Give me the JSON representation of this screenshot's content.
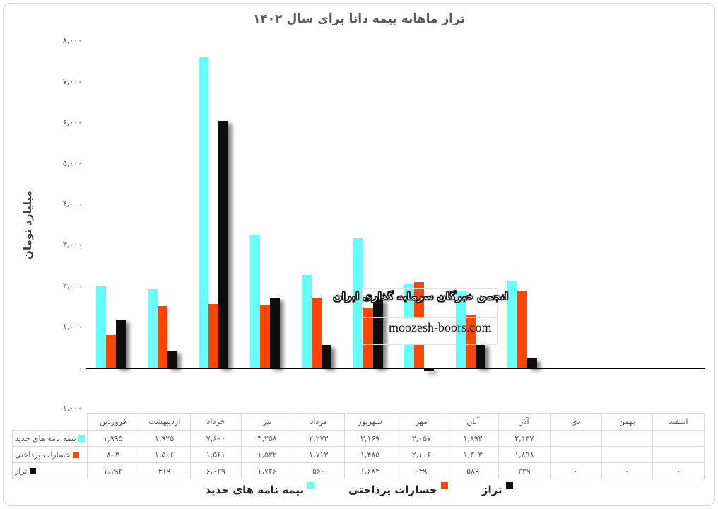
{
  "title": "تراز ماهانه بیمه دانا برای سال ۱۴۰۲",
  "y_axis": {
    "label": "میلیارد تومان",
    "ticks": [
      "۸,۰۰۰",
      "۷,۰۰۰",
      "۶,۰۰۰",
      "۵,۰۰۰",
      "۴,۰۰۰",
      "۳,۰۰۰",
      "۲,۰۰۰",
      "۱,۰۰۰",
      "۰",
      "-۱,۰۰۰"
    ]
  },
  "watermark": {
    "line1": "انجمن خبرگان سرمایه گذاری ایران",
    "line2": "moozesh-boors.com"
  },
  "chart_data": {
    "type": "bar",
    "title": "تراز ماهانه بیمه دانا برای سال ۱۴۰۲",
    "xlabel": "",
    "ylabel": "میلیارد تومان",
    "ylim": [
      -1000,
      8000
    ],
    "ytick_step": 1000,
    "grid": false,
    "legend_position": "bottom",
    "background": "#ffffff",
    "categories": [
      "فروردین",
      "اردیبهشت",
      "خرداد",
      "تیر",
      "مرداد",
      "شهریور",
      "مهر",
      "آبان",
      "آذر",
      "دی",
      "بهمن",
      "اسفند"
    ],
    "series": [
      {
        "name": "بیمه نامه های جدید",
        "color": "#66FFFF",
        "values": [
          1995,
          1925,
          7600,
          3258,
          2273,
          3169,
          2057,
          1892,
          2137,
          null,
          null,
          null
        ]
      },
      {
        "name": "خسارات پرداختی",
        "color": "#FF4500",
        "values": [
          803,
          1506,
          1561,
          1532,
          1713,
          1485,
          2106,
          1303,
          1898,
          null,
          null,
          null
        ]
      },
      {
        "name": "تراز",
        "color": "#0d0d0d",
        "values": [
          1192,
          419,
          6039,
          1726,
          560,
          1684,
          -49,
          589,
          239,
          0,
          0,
          0
        ]
      }
    ]
  }
}
